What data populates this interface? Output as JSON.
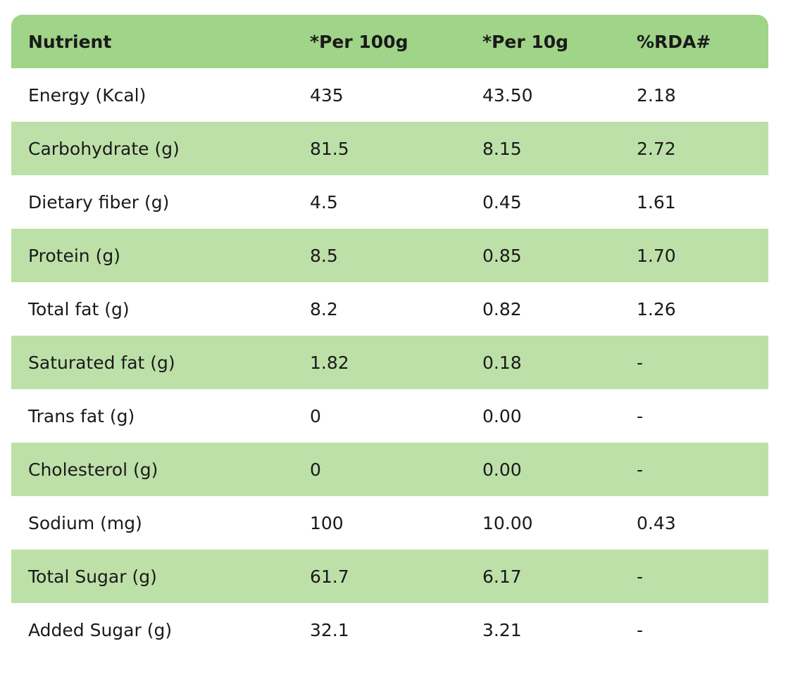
{
  "table": {
    "header": [
      "Nutrient",
      "*Per 100g",
      "*Per 10g",
      "%RDA#"
    ],
    "rows": [
      [
        "Energy (Kcal)",
        "435",
        "43.50",
        "2.18"
      ],
      [
        "Carbohydrate (g)",
        "81.5",
        "8.15",
        "2.72"
      ],
      [
        "Dietary fiber (g)",
        "4.5",
        "0.45",
        "1.61"
      ],
      [
        "Protein (g)",
        "8.5",
        "0.85",
        "1.70"
      ],
      [
        "Total fat (g)",
        "8.2",
        "0.82",
        "1.26"
      ],
      [
        "Saturated fat (g)",
        "1.82",
        "0.18",
        "-"
      ],
      [
        "Trans fat (g)",
        "0",
        "0.00",
        "-"
      ],
      [
        "Cholesterol (g)",
        "0",
        "0.00",
        "-"
      ],
      [
        "Sodium (mg)",
        "100",
        "10.00",
        "0.43"
      ],
      [
        "Total Sugar (g)",
        "61.7",
        "6.17",
        "-"
      ],
      [
        "Added Sugar (g)",
        "32.1",
        "3.21",
        "-"
      ]
    ]
  }
}
